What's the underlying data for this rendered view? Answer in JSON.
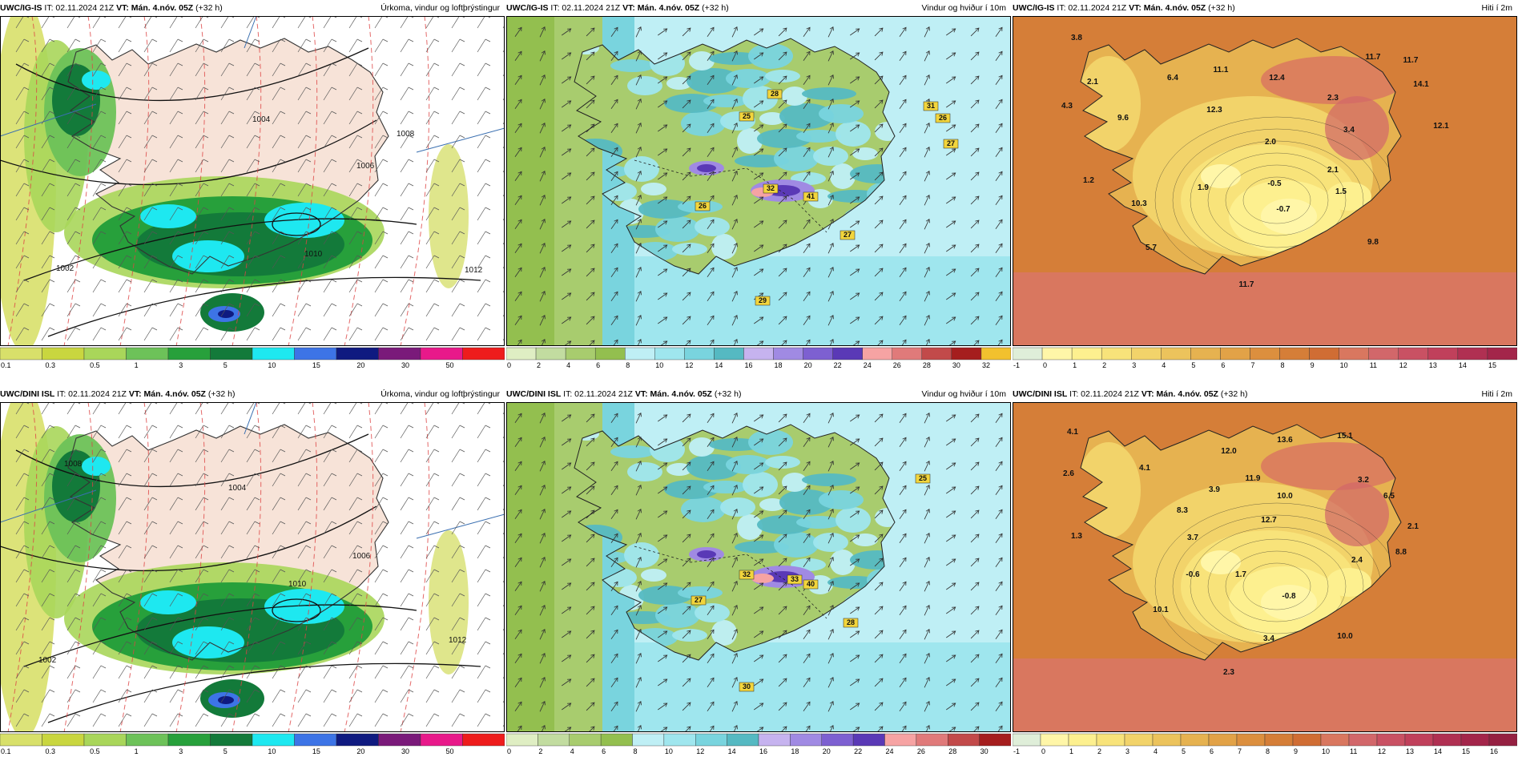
{
  "panels": [
    {
      "model": "UWC/IG-IS",
      "it": "IT: 02.11.2024 21Z",
      "vt": "VT: Mán. 4.nóv. 05Z",
      "lead": "(+32 h)",
      "product": "Úrkoma, vindur og loftþrýstingur",
      "type": "precip",
      "ticks": [
        "0.1",
        "0.3",
        "0.5",
        "1",
        "3",
        "5",
        "10",
        "15",
        "20",
        "30",
        "50"
      ],
      "labels": [
        "1004",
        "1002",
        "1006",
        "1008",
        "1010",
        "1012"
      ]
    },
    {
      "model": "UWC/IG-IS",
      "it": "IT: 02.11.2024 21Z",
      "vt": "VT: Mán. 4.nóv. 05Z",
      "lead": "(+32 h)",
      "product": "Vindur og hviður í 10m",
      "type": "wind",
      "ticks": [
        "0",
        "2",
        "4",
        "6",
        "8",
        "10",
        "12",
        "14",
        "16",
        "18",
        "20",
        "22",
        "24",
        "26",
        "28",
        "30",
        "32"
      ],
      "labels": [
        "28",
        "25",
        "31",
        "26",
        "27",
        "32",
        "41",
        "26",
        "27",
        "29"
      ]
    },
    {
      "model": "UWC/IG-IS",
      "it": "IT: 02.11.2024 21Z",
      "vt": "VT: Mán. 4.nóv. 05Z",
      "lead": "(+32 h)",
      "product": "Hiti í 2m",
      "type": "temp",
      "ticks": [
        "-1",
        "0",
        "1",
        "2",
        "3",
        "4",
        "5",
        "6",
        "7",
        "8",
        "9",
        "10",
        "11",
        "12",
        "13",
        "14",
        "15"
      ],
      "labels": [
        "3.8",
        "2.1",
        "6.4",
        "11.1",
        "12.4",
        "11.7",
        "11.7",
        "14.1",
        "4.3",
        "9.6",
        "12.3",
        "2.3",
        "3.4",
        "12.1",
        "2.0",
        "2.1",
        "1.2",
        "1.9",
        "-0.5",
        "1.5",
        "10.3",
        "-0.7",
        "5.7",
        "9.8",
        "11.7"
      ]
    },
    {
      "model": "UWC/DINI ISL",
      "it": "IT: 02.11.2024 21Z",
      "vt": "VT: Mán. 4.nóv. 05Z",
      "lead": "(+32 h)",
      "product": "Úrkoma, vindur og loftþrýstingur",
      "type": "precip",
      "ticks": [
        "0.1",
        "0.3",
        "0.5",
        "1",
        "3",
        "5",
        "10",
        "15",
        "20",
        "30",
        "50"
      ],
      "labels": [
        "1004",
        "1002",
        "1006",
        "1008",
        "1010",
        "1012"
      ]
    },
    {
      "model": "UWC/DINI ISL",
      "it": "IT: 02.11.2024 21Z",
      "vt": "VT: Mán. 4.nóv. 05Z",
      "lead": "(+32 h)",
      "product": "Vindur og hviður í 10m",
      "type": "wind",
      "ticks": [
        "0",
        "2",
        "4",
        "6",
        "8",
        "10",
        "12",
        "14",
        "16",
        "18",
        "20",
        "22",
        "24",
        "26",
        "28",
        "30"
      ],
      "labels": [
        "25",
        "32",
        "33",
        "40",
        "27",
        "28",
        "30"
      ]
    },
    {
      "model": "UWC/DINI ISL",
      "it": "IT: 02.11.2024 21Z",
      "vt": "VT: Mán. 4.nóv. 05Z",
      "lead": "(+32 h)",
      "product": "Hiti í 2m",
      "type": "temp",
      "ticks": [
        "-1",
        "0",
        "1",
        "2",
        "3",
        "4",
        "5",
        "6",
        "7",
        "8",
        "9",
        "10",
        "11",
        "12",
        "13",
        "14",
        "15",
        "16"
      ],
      "labels": [
        "4.1",
        "2.6",
        "4.1",
        "12.0",
        "11.9",
        "13.6",
        "15.1",
        "3.2",
        "6.5",
        "3.9",
        "10.0",
        "8.3",
        "12.7",
        "2.1",
        "3.7",
        "1.3",
        "1.7",
        "-0.6",
        "2.4",
        "8.8",
        "-0.8",
        "10.1",
        "3.4",
        "10.0",
        "2.3"
      ]
    }
  ],
  "colors": {
    "precip": [
      "#d8e06a",
      "#c9d63f",
      "#a9d65a",
      "#6dc259",
      "#27a03b",
      "#137a3a",
      "#1ee8f0",
      "#3d74e6",
      "#0f1a80",
      "#7a1a7a",
      "#e8198a",
      "#ee1c1c"
    ],
    "wind": [
      "#dfeec3",
      "#c2dca0",
      "#a8cc6e",
      "#93bf4f",
      "#bfeff5",
      "#9fe6ee",
      "#79d4de",
      "#55b9c2",
      "#c6b3ef",
      "#a08ae3",
      "#7d60d1",
      "#5a39b6",
      "#f6a3a3",
      "#e07a7a",
      "#c24a4a",
      "#a51e1e",
      "#f2c12e"
    ],
    "temp": [
      "#dfeed9",
      "#fff6a8",
      "#fdf08f",
      "#f8e37a",
      "#f2d36a",
      "#ecc35c",
      "#e6b250",
      "#e2a247",
      "#dc8f3e",
      "#d57e38",
      "#d06d34",
      "#d9775f",
      "#d2676a",
      "#c95163",
      "#c0405b",
      "#b03052",
      "#a3254a",
      "#952041"
    ]
  }
}
